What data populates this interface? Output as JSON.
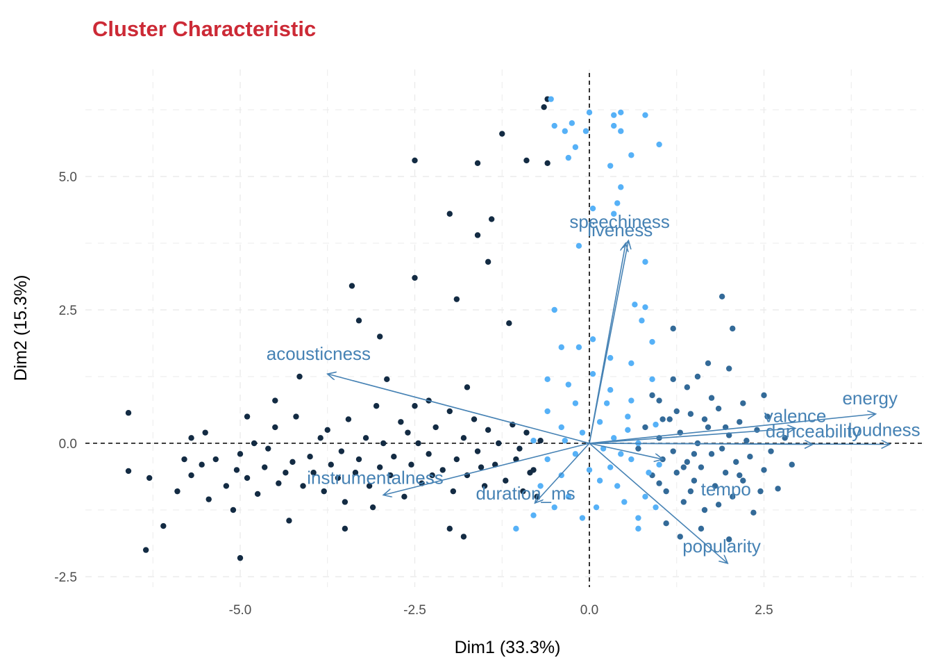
{
  "chart_data": {
    "type": "scatter",
    "title": "Cluster Characteristic",
    "xlabel": "Dim1 (33.3%)",
    "ylabel": "Dim2 (15.3%)",
    "xlim": [
      -7.2,
      4.7
    ],
    "ylim": [
      -2.7,
      6.75
    ],
    "xticks": [
      -5.0,
      -2.5,
      0.0,
      2.5
    ],
    "xtick_labels": [
      "-5.0",
      "-2.5",
      "0.0",
      "2.5"
    ],
    "yticks": [
      -2.5,
      0.0,
      2.5,
      5.0
    ],
    "ytick_labels": [
      "-2.5",
      "0.0",
      "2.5",
      "5.0"
    ],
    "grid": true,
    "reference_lines": {
      "x": 0,
      "y": 0,
      "style": "dashed"
    },
    "colors": {
      "cluster_dark": "#132b43",
      "cluster_mid": "#336a98",
      "cluster_light": "#56b1f7",
      "arrows": "#4682b4",
      "title": "#cc2a36",
      "grid": "#ebebeb"
    },
    "loadings": [
      {
        "label": "acousticness",
        "x": -3.75,
        "y": 1.3
      },
      {
        "label": "instrumentalness",
        "x": -2.95,
        "y": -0.97
      },
      {
        "label": "duration_ms",
        "x": -0.78,
        "y": -1.12
      },
      {
        "label": "speechiness",
        "x": 0.56,
        "y": 3.8
      },
      {
        "label": "liveness",
        "x": 0.52,
        "y": 3.75
      },
      {
        "label": "energy",
        "x": 4.1,
        "y": 0.55
      },
      {
        "label": "valence",
        "x": 2.95,
        "y": 0.28
      },
      {
        "label": "danceability",
        "x": 3.2,
        "y": -0.02
      },
      {
        "label": "loudness",
        "x": 4.3,
        "y": -0.02
      },
      {
        "label": "tempo",
        "x": 1.05,
        "y": -0.3
      },
      {
        "label": "popularity",
        "x": 1.98,
        "y": -2.25
      }
    ],
    "clusters": [
      {
        "color": "#132b43",
        "points": [
          [
            -6.6,
            0.57
          ],
          [
            -6.6,
            -0.52
          ],
          [
            -6.3,
            -0.65
          ],
          [
            -6.35,
            -2.0
          ],
          [
            -6.1,
            -1.55
          ],
          [
            -5.9,
            -0.9
          ],
          [
            -5.7,
            -0.6
          ],
          [
            -5.55,
            -0.4
          ],
          [
            -5.45,
            -1.05
          ],
          [
            -5.5,
            0.2
          ],
          [
            -5.35,
            -0.3
          ],
          [
            -5.2,
            -0.8
          ],
          [
            -5.1,
            -1.25
          ],
          [
            -5.05,
            -0.5
          ],
          [
            -5.0,
            -0.2
          ],
          [
            -4.9,
            -0.65
          ],
          [
            -4.8,
            0.0
          ],
          [
            -4.75,
            -0.95
          ],
          [
            -4.65,
            -0.45
          ],
          [
            -4.6,
            -0.1
          ],
          [
            -4.5,
            0.3
          ],
          [
            -4.45,
            -0.75
          ],
          [
            -4.35,
            -0.55
          ],
          [
            -4.3,
            -1.45
          ],
          [
            -4.25,
            -0.35
          ],
          [
            -4.15,
            1.25
          ],
          [
            -4.1,
            -0.8
          ],
          [
            -4.0,
            -0.25
          ],
          [
            -3.95,
            -0.55
          ],
          [
            -3.85,
            0.1
          ],
          [
            -3.8,
            -0.9
          ],
          [
            -3.7,
            -0.4
          ],
          [
            -3.6,
            -0.65
          ],
          [
            -3.55,
            -0.15
          ],
          [
            -3.5,
            -1.1
          ],
          [
            -3.45,
            0.45
          ],
          [
            -3.35,
            -0.55
          ],
          [
            -3.3,
            -0.3
          ],
          [
            -3.2,
            0.1
          ],
          [
            -3.15,
            -0.8
          ],
          [
            -3.1,
            -1.2
          ],
          [
            -3.05,
            0.7
          ],
          [
            -3.0,
            -0.45
          ],
          [
            -2.95,
            0.0
          ],
          [
            -2.85,
            -0.6
          ],
          [
            -2.8,
            -0.25
          ],
          [
            -2.7,
            0.4
          ],
          [
            -2.65,
            -1.0
          ],
          [
            -2.55,
            -0.4
          ],
          [
            -2.5,
            0.7
          ],
          [
            -2.45,
            0.0
          ],
          [
            -2.4,
            -0.75
          ],
          [
            -2.3,
            -0.2
          ],
          [
            -2.2,
            0.3
          ],
          [
            -2.1,
            -0.5
          ],
          [
            -2.0,
            0.6
          ],
          [
            -1.95,
            -0.9
          ],
          [
            -1.9,
            -0.3
          ],
          [
            -1.8,
            0.1
          ],
          [
            -1.75,
            -0.6
          ],
          [
            -1.65,
            0.45
          ],
          [
            -1.6,
            -0.15
          ],
          [
            -1.5,
            -0.8
          ],
          [
            -1.45,
            0.25
          ],
          [
            -1.35,
            -0.4
          ],
          [
            -1.3,
            0.0
          ],
          [
            -1.2,
            -0.7
          ],
          [
            -1.1,
            0.35
          ],
          [
            -1.05,
            -0.3
          ],
          [
            -0.95,
            -0.9
          ],
          [
            -0.9,
            0.2
          ],
          [
            -0.8,
            -0.5
          ],
          [
            -0.7,
            0.05
          ],
          [
            -5.0,
            -2.15
          ],
          [
            -3.4,
            2.95
          ],
          [
            -3.0,
            2.0
          ],
          [
            -2.5,
            3.1
          ],
          [
            -2.0,
            4.3
          ],
          [
            -1.6,
            3.9
          ],
          [
            -1.4,
            4.2
          ],
          [
            -1.9,
            2.7
          ],
          [
            -1.15,
            2.25
          ],
          [
            -0.6,
            6.45
          ],
          [
            -0.65,
            6.3
          ],
          [
            -0.6,
            5.25
          ],
          [
            -0.9,
            5.3
          ],
          [
            -1.25,
            5.8
          ],
          [
            -1.6,
            5.25
          ],
          [
            -2.5,
            5.3
          ],
          [
            -1.45,
            3.4
          ],
          [
            -3.3,
            2.3
          ],
          [
            -2.9,
            1.2
          ],
          [
            -2.3,
            0.8
          ],
          [
            -1.75,
            1.05
          ],
          [
            -1.8,
            -1.75
          ],
          [
            -2.0,
            -1.6
          ],
          [
            -3.5,
            -1.6
          ],
          [
            -4.5,
            0.8
          ],
          [
            -4.9,
            0.5
          ],
          [
            -5.7,
            0.1
          ],
          [
            -5.8,
            -0.3
          ],
          [
            -4.2,
            0.5
          ],
          [
            -3.75,
            0.25
          ],
          [
            -2.6,
            0.2
          ],
          [
            -2.25,
            -0.6
          ],
          [
            -1.55,
            -0.45
          ],
          [
            -1.0,
            -0.1
          ],
          [
            -0.85,
            -0.55
          ],
          [
            -0.75,
            -1.0
          ]
        ]
      },
      {
        "color": "#336a98",
        "points": [
          [
            0.7,
            -0.1
          ],
          [
            0.8,
            0.3
          ],
          [
            0.9,
            -0.6
          ],
          [
            1.0,
            0.1
          ],
          [
            1.05,
            -0.3
          ],
          [
            1.1,
            -0.9
          ],
          [
            1.15,
            0.45
          ],
          [
            1.2,
            -0.15
          ],
          [
            1.25,
            -0.55
          ],
          [
            1.3,
            0.2
          ],
          [
            1.35,
            -1.1
          ],
          [
            1.4,
            -0.35
          ],
          [
            1.45,
            0.55
          ],
          [
            1.5,
            -0.7
          ],
          [
            1.55,
            0.0
          ],
          [
            1.6,
            -0.45
          ],
          [
            1.65,
            -1.25
          ],
          [
            1.7,
            0.3
          ],
          [
            1.75,
            -0.2
          ],
          [
            1.8,
            -0.8
          ],
          [
            1.85,
            0.65
          ],
          [
            1.9,
            -0.1
          ],
          [
            1.95,
            -0.55
          ],
          [
            2.0,
            0.15
          ],
          [
            2.05,
            -1.0
          ],
          [
            2.1,
            -0.35
          ],
          [
            2.15,
            0.4
          ],
          [
            2.2,
            -0.7
          ],
          [
            2.25,
            0.05
          ],
          [
            2.3,
            -0.25
          ],
          [
            2.35,
            -1.3
          ],
          [
            2.4,
            0.25
          ],
          [
            2.5,
            -0.5
          ],
          [
            2.55,
            0.5
          ],
          [
            2.6,
            -0.15
          ],
          [
            2.7,
            -0.85
          ],
          [
            2.8,
            0.1
          ],
          [
            2.9,
            -0.4
          ],
          [
            1.0,
            0.8
          ],
          [
            1.2,
            1.2
          ],
          [
            1.4,
            1.05
          ],
          [
            1.7,
            1.5
          ],
          [
            1.9,
            2.75
          ],
          [
            2.05,
            2.15
          ],
          [
            1.2,
            2.15
          ],
          [
            1.55,
            1.25
          ],
          [
            2.0,
            1.4
          ],
          [
            2.5,
            0.9
          ],
          [
            1.1,
            -1.5
          ],
          [
            1.3,
            -1.75
          ],
          [
            1.6,
            -1.6
          ],
          [
            2.0,
            -1.8
          ],
          [
            0.9,
            0.9
          ],
          [
            1.45,
            -0.9
          ],
          [
            1.75,
            0.85
          ],
          [
            2.2,
            0.75
          ],
          [
            1.85,
            -1.15
          ],
          [
            1.25,
            0.6
          ],
          [
            1.5,
            -0.2
          ],
          [
            1.65,
            0.45
          ],
          [
            2.15,
            -0.6
          ],
          [
            1.0,
            -0.75
          ],
          [
            1.35,
            -0.45
          ],
          [
            2.45,
            -0.9
          ],
          [
            1.95,
            0.3
          ],
          [
            1.05,
            0.45
          ]
        ]
      },
      {
        "color": "#56b1f7",
        "points": [
          [
            -0.55,
            6.45
          ],
          [
            -0.5,
            5.95
          ],
          [
            -0.35,
            5.85
          ],
          [
            -0.25,
            6.0
          ],
          [
            -0.2,
            5.55
          ],
          [
            -0.3,
            5.35
          ],
          [
            -0.05,
            5.85
          ],
          [
            0.0,
            6.2
          ],
          [
            0.35,
            6.15
          ],
          [
            0.45,
            6.2
          ],
          [
            0.35,
            5.95
          ],
          [
            0.45,
            5.85
          ],
          [
            0.8,
            6.15
          ],
          [
            1.0,
            5.6
          ],
          [
            0.6,
            5.4
          ],
          [
            0.3,
            5.2
          ],
          [
            0.45,
            4.8
          ],
          [
            0.4,
            4.5
          ],
          [
            0.35,
            4.3
          ],
          [
            0.05,
            4.4
          ],
          [
            -0.15,
            3.7
          ],
          [
            0.8,
            3.4
          ],
          [
            -0.5,
            2.5
          ],
          [
            -0.4,
            1.8
          ],
          [
            -0.15,
            1.8
          ],
          [
            0.05,
            1.95
          ],
          [
            0.65,
            2.6
          ],
          [
            0.8,
            2.55
          ],
          [
            0.75,
            2.3
          ],
          [
            0.9,
            1.9
          ],
          [
            0.3,
            1.6
          ],
          [
            0.6,
            1.5
          ],
          [
            -0.6,
            1.2
          ],
          [
            -0.3,
            1.1
          ],
          [
            0.05,
            1.3
          ],
          [
            0.3,
            1.0
          ],
          [
            0.6,
            0.8
          ],
          [
            0.9,
            1.2
          ],
          [
            -0.6,
            0.6
          ],
          [
            -0.4,
            0.3
          ],
          [
            -0.2,
            0.75
          ],
          [
            0.15,
            0.4
          ],
          [
            0.35,
            0.1
          ],
          [
            0.55,
            0.5
          ],
          [
            0.7,
            0.0
          ],
          [
            -0.8,
            0.05
          ],
          [
            -0.6,
            -0.3
          ],
          [
            -0.4,
            -0.6
          ],
          [
            -0.2,
            -0.2
          ],
          [
            0.0,
            -0.5
          ],
          [
            0.2,
            -0.1
          ],
          [
            0.4,
            -0.8
          ],
          [
            0.6,
            -0.3
          ],
          [
            0.8,
            -1.0
          ],
          [
            -0.7,
            -0.8
          ],
          [
            -0.5,
            -1.2
          ],
          [
            -0.3,
            -1.0
          ],
          [
            -0.1,
            -1.4
          ],
          [
            0.1,
            -1.2
          ],
          [
            0.3,
            -0.45
          ],
          [
            0.5,
            -1.1
          ],
          [
            0.7,
            -1.4
          ],
          [
            -1.05,
            -1.6
          ],
          [
            -0.8,
            -1.35
          ],
          [
            0.7,
            -1.6
          ],
          [
            0.95,
            -1.2
          ],
          [
            1.0,
            -0.4
          ],
          [
            0.95,
            0.35
          ],
          [
            0.25,
            0.75
          ],
          [
            -0.1,
            0.2
          ],
          [
            0.45,
            -0.2
          ],
          [
            0.15,
            -0.7
          ],
          [
            -0.35,
            0.05
          ],
          [
            0.55,
            0.25
          ],
          [
            0.85,
            -0.55
          ]
        ]
      }
    ]
  }
}
